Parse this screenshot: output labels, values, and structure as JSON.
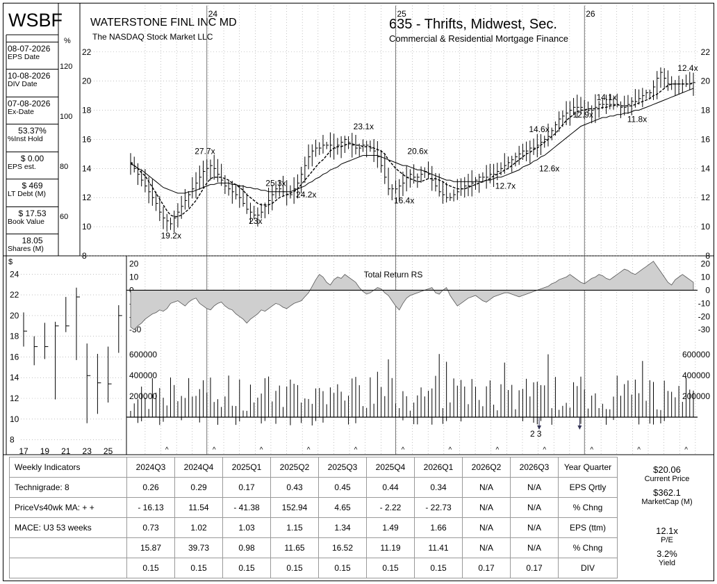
{
  "header": {
    "ticker": "WSBF",
    "company": "WATERSTONE FINL INC MD",
    "exchange": "The NASDAQ Stock Market LLC",
    "industry": "635 - Thrifts, Midwest, Sec.",
    "sector": "Commercial & Residential Mortgage Finance"
  },
  "sidebar": [
    {
      "value": "08-07-2026",
      "label": "EPS Date",
      "align": "left"
    },
    {
      "value": "10-08-2026",
      "label": "DIV Date",
      "align": "left"
    },
    {
      "value": "07-08-2026",
      "label": "Ex-Date",
      "align": "left"
    },
    {
      "value": "53.37%",
      "label": "%Inst Hold",
      "align": "center"
    },
    {
      "value": "$ 0.00",
      "label": "EPS est.",
      "align": "center"
    },
    {
      "value": "$ 469",
      "label": "LT Debt (M)",
      "align": "center"
    },
    {
      "value": "$ 17.53",
      "label": "Book Value",
      "align": "center"
    },
    {
      "value": "18.05",
      "label": "Shares (M)",
      "align": "center"
    }
  ],
  "chart_data": [
    {
      "type": "line",
      "name": "main-price",
      "x_labels": [
        {
          "label": "24",
          "week": 21
        },
        {
          "label": "25",
          "week": 73
        },
        {
          "label": "26",
          "week": 125
        }
      ],
      "y_ticks_price": [
        8,
        10,
        12,
        14,
        16,
        18,
        20,
        22
      ],
      "y_ticks_pct": [
        60,
        80,
        100,
        120
      ],
      "pct_unit": "%",
      "ylim": [
        8,
        22.8
      ],
      "weeks": 156,
      "close": [
        14.4,
        14.0,
        13.6,
        13.2,
        12.8,
        12.4,
        12.0,
        11.6,
        11.0,
        10.6,
        10.4,
        10.2,
        10.6,
        11.0,
        11.4,
        11.8,
        12.2,
        12.6,
        13.0,
        13.4,
        13.8,
        14.0,
        14.2,
        14.0,
        13.6,
        13.2,
        12.8,
        12.6,
        12.4,
        12.2,
        12.0,
        11.6,
        11.2,
        11.0,
        10.8,
        10.8,
        11.0,
        11.4,
        11.8,
        12.2,
        12.6,
        12.6,
        12.4,
        12.2,
        12.2,
        12.6,
        13.0,
        13.6,
        14.2,
        14.8,
        15.2,
        15.4,
        15.4,
        15.6,
        15.6,
        15.6,
        15.4,
        15.6,
        15.8,
        16.0,
        15.8,
        15.6,
        15.4,
        15.4,
        15.6,
        15.6,
        15.4,
        15.2,
        14.8,
        14.2,
        13.4,
        12.6,
        12.6,
        12.6,
        12.8,
        13.0,
        13.4,
        13.6,
        13.4,
        13.4,
        13.6,
        13.8,
        13.6,
        13.2,
        12.8,
        12.4,
        12.2,
        12.0,
        12.0,
        12.2,
        12.4,
        12.6,
        12.8,
        12.8,
        13.0,
        13.2,
        13.4,
        13.4,
        13.4,
        13.6,
        13.6,
        13.8,
        14.0,
        14.2,
        14.4,
        14.6,
        14.8,
        15.0,
        15.2,
        15.2,
        15.4,
        15.4,
        15.6,
        15.8,
        16.0,
        16.2,
        16.6,
        17.0,
        17.4,
        17.6,
        17.8,
        18.0,
        18.2,
        18.2,
        18.2,
        18.0,
        18.0,
        18.0,
        18.2,
        18.4,
        18.4,
        18.4,
        18.4,
        18.4,
        18.4,
        18.2,
        18.2,
        18.4,
        18.6,
        18.6,
        18.8,
        19.0,
        19.2,
        19.2,
        19.6,
        20.2,
        20.6,
        20.2,
        19.8,
        19.8,
        19.8,
        19.8,
        19.8,
        19.8,
        19.8,
        19.9
      ],
      "ma10": [
        14.4,
        14.2,
        14.0,
        13.7,
        13.5,
        13.1,
        12.7,
        12.3,
        11.9,
        11.5,
        11.1,
        10.8,
        10.7,
        10.7,
        10.8,
        11.0,
        11.2,
        11.5,
        11.8,
        12.2,
        12.6,
        13.0,
        13.3,
        13.4,
        13.4,
        13.4,
        13.3,
        13.2,
        13.0,
        12.9,
        12.7,
        12.5,
        12.2,
        12.0,
        11.8,
        11.6,
        11.5,
        11.5,
        11.5,
        11.6,
        11.8,
        12.0,
        12.1,
        12.2,
        12.3,
        12.4,
        12.6,
        12.9,
        13.2,
        13.5,
        13.8,
        14.1,
        14.4,
        14.6,
        14.9,
        15.2,
        15.4,
        15.5,
        15.5,
        15.6,
        15.7,
        15.7,
        15.6,
        15.6,
        15.5,
        15.5,
        15.5,
        15.4,
        15.3,
        15.2,
        15.0,
        14.6,
        14.3,
        14.0,
        13.8,
        13.6,
        13.4,
        13.3,
        13.2,
        13.1,
        13.1,
        13.2,
        13.3,
        13.3,
        13.3,
        13.2,
        13.1,
        12.9,
        12.8,
        12.7,
        12.6,
        12.6,
        12.6,
        12.7,
        12.8,
        12.9,
        13.0,
        13.1,
        13.2,
        13.3,
        13.5,
        13.6,
        13.7,
        13.9,
        14.0,
        14.2,
        14.4,
        14.6,
        14.8,
        15.0,
        15.1,
        15.3,
        15.4,
        15.6,
        15.8,
        16.0,
        16.2,
        16.4,
        16.7,
        17.0,
        17.3,
        17.5,
        17.7,
        17.9,
        18.0,
        18.0,
        18.1,
        18.1,
        18.1,
        18.1,
        18.2,
        18.2,
        18.3,
        18.3,
        18.4,
        18.3,
        18.3,
        18.3,
        18.3,
        18.4,
        18.5,
        18.6,
        18.7,
        18.8,
        19.0,
        19.1,
        19.3,
        19.5,
        19.7,
        19.8,
        19.8,
        19.8,
        19.8,
        19.8,
        19.8,
        19.9
      ],
      "ma40": [
        14.3,
        14.2,
        14.0,
        13.9,
        13.7,
        13.5,
        13.3,
        13.1,
        12.9,
        12.7,
        12.6,
        12.5,
        12.4,
        12.3,
        12.3,
        12.3,
        12.4,
        12.4,
        12.5,
        12.6,
        12.7,
        12.8,
        12.9,
        12.9,
        13.0,
        13.0,
        13.0,
        13.0,
        12.9,
        12.9,
        12.8,
        12.8,
        12.7,
        12.7,
        12.6,
        12.6,
        12.5,
        12.5,
        12.4,
        12.4,
        12.4,
        12.4,
        12.4,
        12.4,
        12.4,
        12.5,
        12.6,
        12.7,
        12.8,
        13.0,
        13.1,
        13.3,
        13.4,
        13.6,
        13.7,
        13.9,
        14.0,
        14.1,
        14.3,
        14.4,
        14.5,
        14.6,
        14.7,
        14.8,
        14.9,
        14.9,
        14.9,
        14.9,
        14.9,
        14.8,
        14.7,
        14.6,
        14.5,
        14.4,
        14.3,
        14.2,
        14.2,
        14.1,
        14.0,
        13.9,
        13.9,
        13.8,
        13.7,
        13.6,
        13.5,
        13.4,
        13.3,
        13.2,
        13.2,
        13.1,
        13.1,
        13.1,
        13.1,
        13.1,
        13.1,
        13.1,
        13.1,
        13.1,
        13.2,
        13.2,
        13.3,
        13.4,
        13.4,
        13.5,
        13.6,
        13.7,
        13.8,
        13.9,
        14.1,
        14.2,
        14.3,
        14.5,
        14.6,
        14.8,
        14.9,
        15.1,
        15.3,
        15.5,
        15.7,
        15.9,
        16.1,
        16.3,
        16.5,
        16.7,
        16.9,
        17.0,
        17.1,
        17.2,
        17.3,
        17.4,
        17.5,
        17.5,
        17.6,
        17.6,
        17.7,
        17.7,
        17.8,
        17.8,
        17.9,
        18.0,
        18.0,
        18.1,
        18.2,
        18.3,
        18.4,
        18.5,
        18.6,
        18.7,
        18.8,
        18.9,
        19.0,
        19.1,
        19.2,
        19.3,
        19.4,
        19.5
      ],
      "pe_labels": [
        {
          "text": "19.2x",
          "week": 12,
          "price": 9.2
        },
        {
          "text": "27.7x",
          "week": 22,
          "price": 15.0
        },
        {
          "text": "23x",
          "week": 37,
          "price": 10.2
        },
        {
          "text": "25.3x",
          "week": 43,
          "price": 12.8
        },
        {
          "text": "24.2x",
          "week": 52,
          "price": 12.0
        },
        {
          "text": "23.1x",
          "week": 69,
          "price": 16.7
        },
        {
          "text": "16.4x",
          "week": 81,
          "price": 11.6
        },
        {
          "text": "20.6x",
          "week": 85,
          "price": 15.0
        },
        {
          "text": "12.7x",
          "week": 111,
          "price": 12.6
        },
        {
          "text": "14.6x",
          "week": 121,
          "price": 16.5
        },
        {
          "text": "12.6x",
          "week": 124,
          "price": 13.8
        },
        {
          "text": "12.9x",
          "week": 134,
          "price": 17.5
        },
        {
          "text": "14.1x",
          "week": 141,
          "price": 18.7
        },
        {
          "text": "11.8x",
          "week": 150,
          "price": 17.2
        },
        {
          "text": "12.4x",
          "week": 166,
          "price": 20.7
        }
      ]
    },
    {
      "type": "area",
      "name": "total-return-rs",
      "title": "Total Return RS",
      "y_ticks": [
        20,
        10,
        0,
        -10,
        -20,
        -30
      ],
      "ylim": [
        -32,
        24
      ],
      "values": [
        -28,
        -30,
        -27,
        -25,
        -22,
        -20,
        -18,
        -17,
        -15,
        -16,
        -14,
        -10,
        -9,
        -8,
        -10,
        -12,
        -9,
        -7,
        -6,
        -10,
        -12,
        -14,
        -15,
        -12,
        -10,
        -9,
        -12,
        -14,
        -15,
        -18,
        -20,
        -22,
        -25,
        -22,
        -20,
        -18,
        -15,
        -16,
        -14,
        -12,
        -10,
        -11,
        -13,
        -14,
        -12,
        -10,
        -9,
        -8,
        -5,
        -2,
        3,
        8,
        12,
        10,
        6,
        4,
        8,
        10,
        9,
        12,
        10,
        8,
        6,
        2,
        -1,
        -3,
        -2,
        0,
        2,
        1,
        -2,
        -4,
        -8,
        -12,
        -15,
        -10,
        -6,
        -4,
        -3,
        -2,
        -1,
        0,
        1,
        2,
        -2,
        -3,
        0,
        2,
        -4,
        -8,
        -12,
        -10,
        -8,
        -6,
        -5,
        -4,
        -6,
        -8,
        -9,
        -7,
        -5,
        -4,
        -3,
        -2,
        -2,
        -3,
        -4,
        -5,
        -4,
        -3,
        -2,
        -1,
        0,
        1,
        2,
        3,
        5,
        6,
        8,
        9,
        10,
        12,
        10,
        8,
        6,
        5,
        7,
        9,
        10,
        12,
        11,
        9,
        8,
        10,
        12,
        14,
        16,
        15,
        13,
        12,
        14,
        16,
        18,
        20,
        22,
        18,
        14,
        10,
        6,
        4,
        8,
        10,
        12,
        10,
        8,
        6
      ],
      "weeks": 156
    },
    {
      "type": "bar",
      "name": "volume",
      "y_ticks": [
        200000,
        400000,
        600000
      ],
      "y_tick_labels": [
        "200000",
        "400000",
        "600000"
      ],
      "ylim": [
        0,
        800000
      ],
      "markers": [
        {
          "text": "2",
          "week": 119
        },
        {
          "text": "3",
          "week": 121
        }
      ],
      "seed": 7,
      "weeks": 156
    },
    {
      "type": "bar",
      "name": "yearly-range",
      "unit": "$",
      "x_ticks": [
        "17",
        "19",
        "21",
        "23",
        "25"
      ],
      "y_ticks": [
        8,
        10,
        12,
        14,
        16,
        18,
        20,
        22,
        24
      ],
      "ylim": [
        7.5,
        25.5
      ],
      "bars": [
        {
          "high": 20.3,
          "low": 17.0,
          "close": 18.5
        },
        {
          "high": 18.0,
          "low": 15.2,
          "close": 17.0
        },
        {
          "high": 19.3,
          "low": 15.8,
          "close": 17.0
        },
        {
          "high": 19.4,
          "low": 11.9,
          "close": 19.0
        },
        {
          "high": 21.8,
          "low": 18.4,
          "close": 19.0
        },
        {
          "high": 22.7,
          "low": 15.7,
          "close": 21.8
        },
        {
          "high": 17.3,
          "low": 9.6,
          "close": 14.2
        },
        {
          "high": 16.3,
          "low": 10.5,
          "close": 13.5
        },
        {
          "high": 17.0,
          "low": 11.6,
          "close": 13.4
        },
        {
          "high": 21.0,
          "low": 16.4,
          "close": 20.0
        }
      ]
    }
  ],
  "table": {
    "header_label": "Weekly Indicators",
    "quarters": [
      "2024Q3",
      "2024Q4",
      "2025Q1",
      "2025Q2",
      "2025Q3",
      "2025Q4",
      "2026Q1",
      "2026Q2",
      "2026Q3"
    ],
    "year_quarter_label": "Year Quarter",
    "rows": [
      {
        "label": "Technigrade: 8",
        "values": [
          "0.26",
          "0.29",
          "0.17",
          "0.43",
          "0.45",
          "0.44",
          "0.34",
          "N/A",
          "N/A"
        ],
        "yq": "EPS Qrtly"
      },
      {
        "label": "PriceVs40wk MA:  + +",
        "values": [
          "- 16.13",
          "11.54",
          "- 41.38",
          "152.94",
          "4.65",
          "- 2.22",
          "- 22.73",
          "N/A",
          "N/A"
        ],
        "yq": "% Chng"
      },
      {
        "label": "MACE: U3  53 weeks",
        "values": [
          "0.73",
          "1.02",
          "1.03",
          "1.15",
          "1.34",
          "1.49",
          "1.66",
          "N/A",
          "N/A"
        ],
        "yq": "EPS (ttm)"
      },
      {
        "label": "",
        "values": [
          "15.87",
          "39.73",
          "0.98",
          "11.65",
          "16.52",
          "11.19",
          "11.41",
          "N/A",
          "N/A"
        ],
        "yq": "% Chng"
      },
      {
        "label": "",
        "values": [
          "0.15",
          "0.15",
          "0.15",
          "0.15",
          "0.15",
          "0.15",
          "0.15",
          "0.17",
          "0.17"
        ],
        "yq": "DIV"
      }
    ]
  },
  "right_panel": {
    "current_price": "$20.06",
    "current_price_label": "Current Price",
    "market_cap": "$362.1",
    "market_cap_label": "MarketCap (M)",
    "pe": "12.1x",
    "pe_label": "P/E",
    "yield": "3.2%",
    "yield_label": "Yield"
  }
}
